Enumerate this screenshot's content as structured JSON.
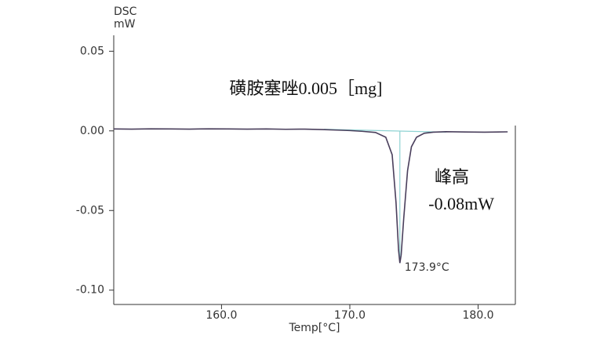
{
  "chart_data": {
    "type": "line",
    "title": "磺胺塞唑0.005［mg]",
    "y_label": "DSC",
    "y_unit": "mW",
    "x_label": "Temp[°C]",
    "x": [
      151.6,
      153,
      154.5,
      156,
      157.5,
      159,
      160.5,
      162,
      163.5,
      165,
      166.5,
      168,
      169,
      170,
      171,
      172,
      172.8,
      173.3,
      173.6,
      173.8,
      173.9,
      174.0,
      174.2,
      174.5,
      174.8,
      175.2,
      175.8,
      176.5,
      177.5,
      179,
      180.5,
      182.3
    ],
    "values": [
      0.0012,
      0.0011,
      0.0013,
      0.0012,
      0.0011,
      0.0013,
      0.0012,
      0.0011,
      0.0012,
      0.001,
      0.0011,
      0.0008,
      0.0005,
      0.0002,
      -0.0003,
      -0.001,
      -0.004,
      -0.015,
      -0.045,
      -0.075,
      -0.083,
      -0.078,
      -0.055,
      -0.025,
      -0.01,
      -0.004,
      -0.0015,
      -0.0008,
      -0.0005,
      -0.0007,
      -0.0008,
      -0.0006
    ],
    "color": "#4a3f5c",
    "baseline": {
      "x": [
        168,
        177.5
      ],
      "values": [
        0.001,
        -0.0008
      ],
      "color": "#8fd3d3"
    },
    "peak": {
      "x": 173.9,
      "value": -0.083,
      "label": "173.9°C"
    },
    "peak_height": {
      "name": "峰高",
      "label": "-0.08mW"
    },
    "xlim": [
      151.6,
      182.9
    ],
    "ylim": [
      -0.109,
      0.06
    ],
    "xticks": [
      {
        "value": 160,
        "label": "160.0"
      },
      {
        "value": 170,
        "label": "170.0"
      },
      {
        "value": 180,
        "label": "180.0"
      }
    ],
    "yticks": [
      0.05,
      {
        "value": 0,
        "label": "0.00"
      },
      -0.05,
      {
        "value": -0.1,
        "label": "-0.10"
      }
    ]
  }
}
